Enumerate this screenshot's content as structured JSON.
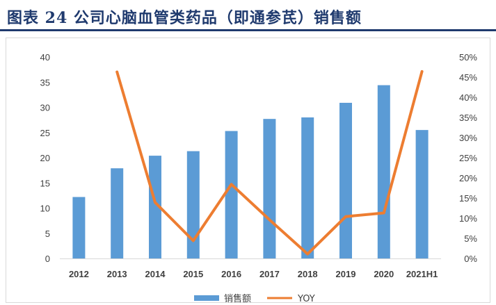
{
  "title": "图表 24   公司心脑血管类药品（即通参芪）销售额",
  "chart_data": {
    "type": "bar",
    "categories": [
      "2012",
      "2013",
      "2014",
      "2015",
      "2016",
      "2017",
      "2018",
      "2019",
      "2020",
      "2021H1"
    ],
    "series": [
      {
        "name": "销售额",
        "type": "bar",
        "axis": "left",
        "color": "#5b9bd5",
        "values": [
          12.2,
          17.9,
          20.4,
          21.3,
          25.3,
          27.7,
          28.0,
          30.9,
          34.4,
          25.5
        ]
      },
      {
        "name": "YOY",
        "type": "line",
        "axis": "right",
        "color": "#ed7d31",
        "values": [
          null,
          46.3,
          13.9,
          4.4,
          18.4,
          9.6,
          1.1,
          10.4,
          11.3,
          46.4
        ]
      }
    ],
    "y_left": {
      "min": 0,
      "max": 40,
      "step": 5,
      "ticks": [
        "0",
        "5",
        "10",
        "15",
        "20",
        "25",
        "30",
        "35",
        "40"
      ]
    },
    "y_right": {
      "min": 0,
      "max": 50,
      "step": 5,
      "ticks": [
        "0%",
        "5%",
        "10%",
        "15%",
        "20%",
        "25%",
        "30%",
        "35%",
        "40%",
        "45%",
        "50%"
      ]
    },
    "grid": false,
    "legend": {
      "placement": "bottom",
      "entries": [
        "销售额",
        "YOY"
      ]
    }
  }
}
